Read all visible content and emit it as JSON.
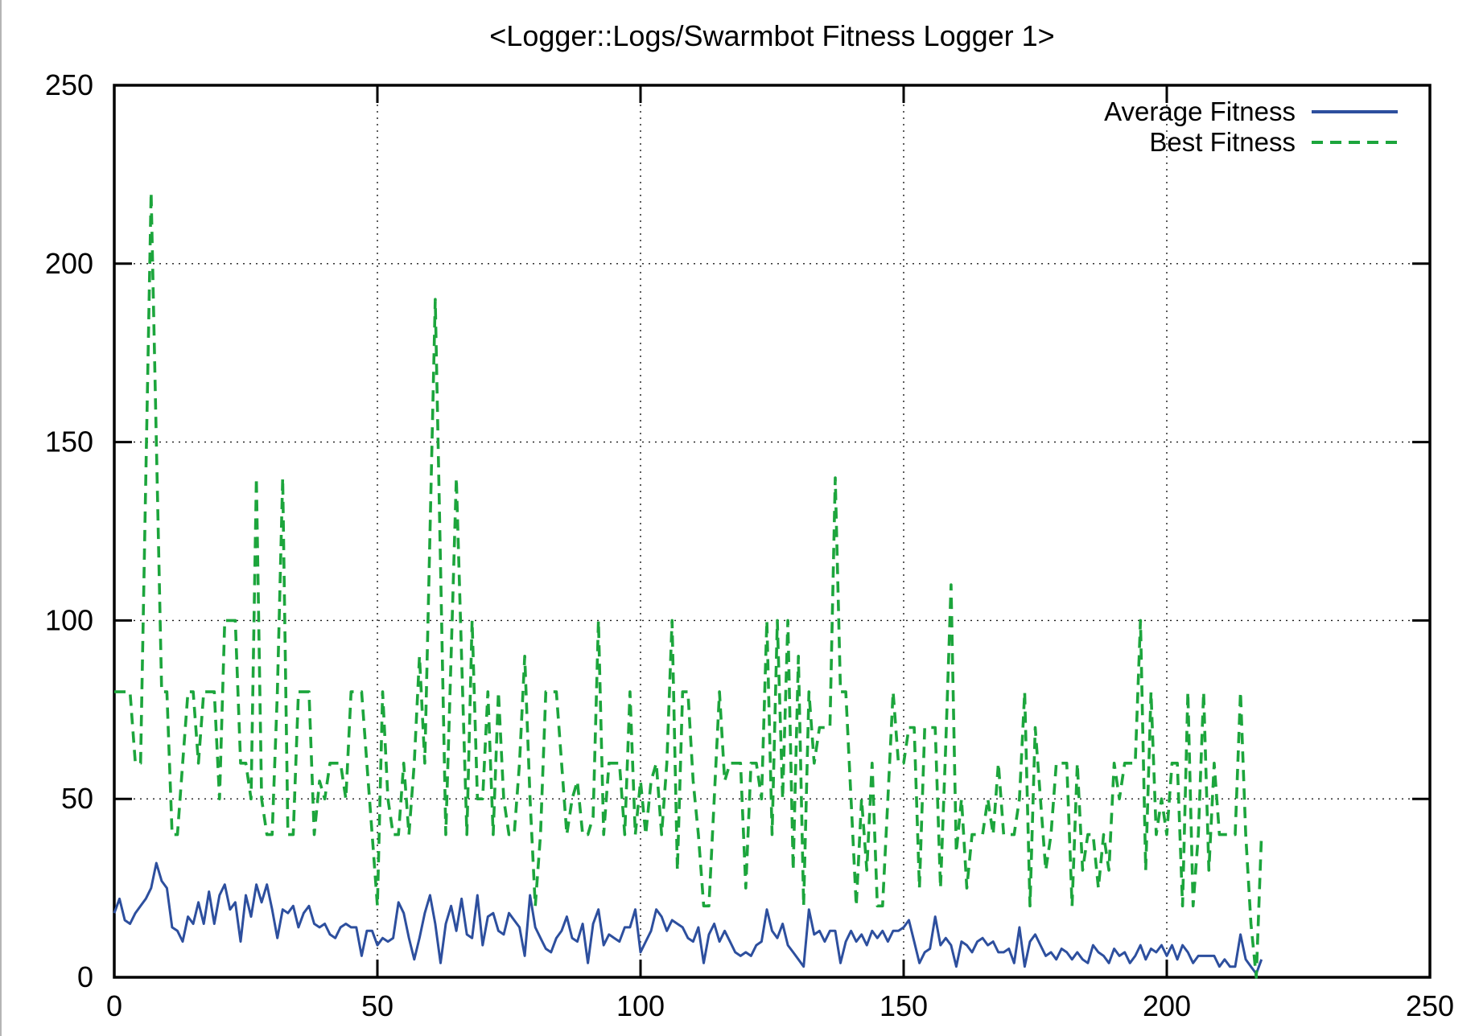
{
  "chart_data": {
    "type": "line",
    "title": "<Logger::Logs/Swarmbot Fitness Logger 1>",
    "xlabel": "",
    "ylabel": "",
    "x_range": [
      0,
      250
    ],
    "y_range": [
      0,
      250
    ],
    "x_ticks": [
      0,
      50,
      100,
      150,
      200,
      250
    ],
    "y_ticks": [
      0,
      50,
      100,
      150,
      200,
      250
    ],
    "grid": true,
    "grid_style": "dotted",
    "legend_position": "top-right",
    "background": "#ffffff",
    "axis_color": "#000000",
    "series": [
      {
        "name": "Average Fitness",
        "color": "#2d4f9e",
        "style": "solid",
        "x_start": 0,
        "x_step": 1,
        "values": [
          18,
          22,
          16,
          15,
          18,
          20,
          22,
          25,
          32,
          27,
          25,
          14,
          13,
          10,
          17,
          15,
          21,
          15,
          24,
          15,
          23,
          26,
          19,
          21,
          10,
          23,
          17,
          26,
          21,
          26,
          19,
          11,
          19,
          18,
          20,
          14,
          18,
          20,
          15,
          14,
          15,
          12,
          11,
          14,
          15,
          14,
          14,
          6,
          13,
          13,
          9,
          11,
          10,
          11,
          21,
          18,
          11,
          5,
          11,
          18,
          23,
          15,
          4,
          15,
          20,
          13,
          22,
          12,
          11,
          23,
          9,
          17,
          18,
          13,
          12,
          18,
          16,
          14,
          6,
          23,
          14,
          11,
          8,
          7,
          11,
          13,
          17,
          11,
          10,
          15,
          4,
          15,
          19,
          9,
          12,
          11,
          10,
          14,
          14,
          19,
          7,
          10,
          13,
          19,
          17,
          13,
          16,
          15,
          14,
          11,
          10,
          14,
          4,
          12,
          15,
          10,
          13,
          10,
          7,
          6,
          7,
          6,
          9,
          10,
          19,
          13,
          11,
          15,
          9,
          7,
          5,
          3,
          19,
          12,
          13,
          10,
          13,
          13,
          4,
          10,
          13,
          10,
          12,
          9,
          13,
          11,
          13,
          10,
          13,
          13,
          14,
          16,
          10,
          4,
          7,
          8,
          17,
          9,
          11,
          9,
          3,
          10,
          9,
          7,
          10,
          11,
          9,
          10,
          7,
          7,
          8,
          4,
          14,
          3,
          10,
          12,
          9,
          6,
          7,
          5,
          8,
          7,
          5,
          7,
          5,
          4,
          9,
          7,
          6,
          4,
          8,
          6,
          7,
          4,
          6,
          9,
          5,
          8,
          7,
          9,
          6,
          9,
          5,
          9,
          7,
          4,
          6,
          6,
          6,
          6,
          3,
          5,
          3,
          3,
          12,
          5,
          3,
          1,
          5
        ]
      },
      {
        "name": "Best Fitness",
        "color": "#1ca53c",
        "style": "dashed",
        "x_start": 0,
        "x_step": 1,
        "values": [
          80,
          80,
          80,
          80,
          60,
          60,
          140,
          220,
          150,
          80,
          80,
          40,
          40,
          60,
          80,
          80,
          60,
          80,
          80,
          80,
          50,
          100,
          100,
          100,
          60,
          60,
          50,
          140,
          50,
          40,
          40,
          80,
          140,
          40,
          40,
          80,
          80,
          80,
          40,
          55,
          50,
          60,
          60,
          60,
          50,
          80,
          80,
          80,
          60,
          40,
          20,
          80,
          50,
          40,
          40,
          60,
          40,
          60,
          90,
          60,
          125,
          190,
          115,
          40,
          90,
          140,
          90,
          40,
          100,
          50,
          50,
          80,
          40,
          80,
          50,
          40,
          40,
          60,
          90,
          50,
          20,
          40,
          80,
          80,
          80,
          60,
          40,
          50,
          55,
          40,
          40,
          45,
          100,
          40,
          60,
          60,
          60,
          40,
          80,
          40,
          55,
          40,
          55,
          60,
          40,
          60,
          100,
          30,
          80,
          80,
          55,
          40,
          20,
          20,
          50,
          80,
          55,
          60,
          60,
          60,
          25,
          60,
          60,
          50,
          100,
          40,
          100,
          50,
          100,
          30,
          90,
          20,
          80,
          60,
          70,
          70,
          70,
          140,
          80,
          80,
          50,
          20,
          50,
          30,
          60,
          20,
          20,
          50,
          80,
          60,
          60,
          70,
          70,
          25,
          70,
          70,
          70,
          25,
          65,
          110,
          35,
          50,
          25,
          40,
          40,
          40,
          50,
          40,
          60,
          40,
          40,
          40,
          50,
          80,
          20,
          70,
          50,
          30,
          40,
          60,
          60,
          60,
          20,
          60,
          30,
          40,
          40,
          25,
          40,
          30,
          60,
          50,
          60,
          60,
          60,
          100,
          30,
          80,
          40,
          50,
          40,
          60,
          60,
          20,
          80,
          20,
          40,
          80,
          30,
          60,
          40,
          40,
          40,
          40,
          80,
          40,
          15,
          0,
          40
        ]
      }
    ]
  }
}
